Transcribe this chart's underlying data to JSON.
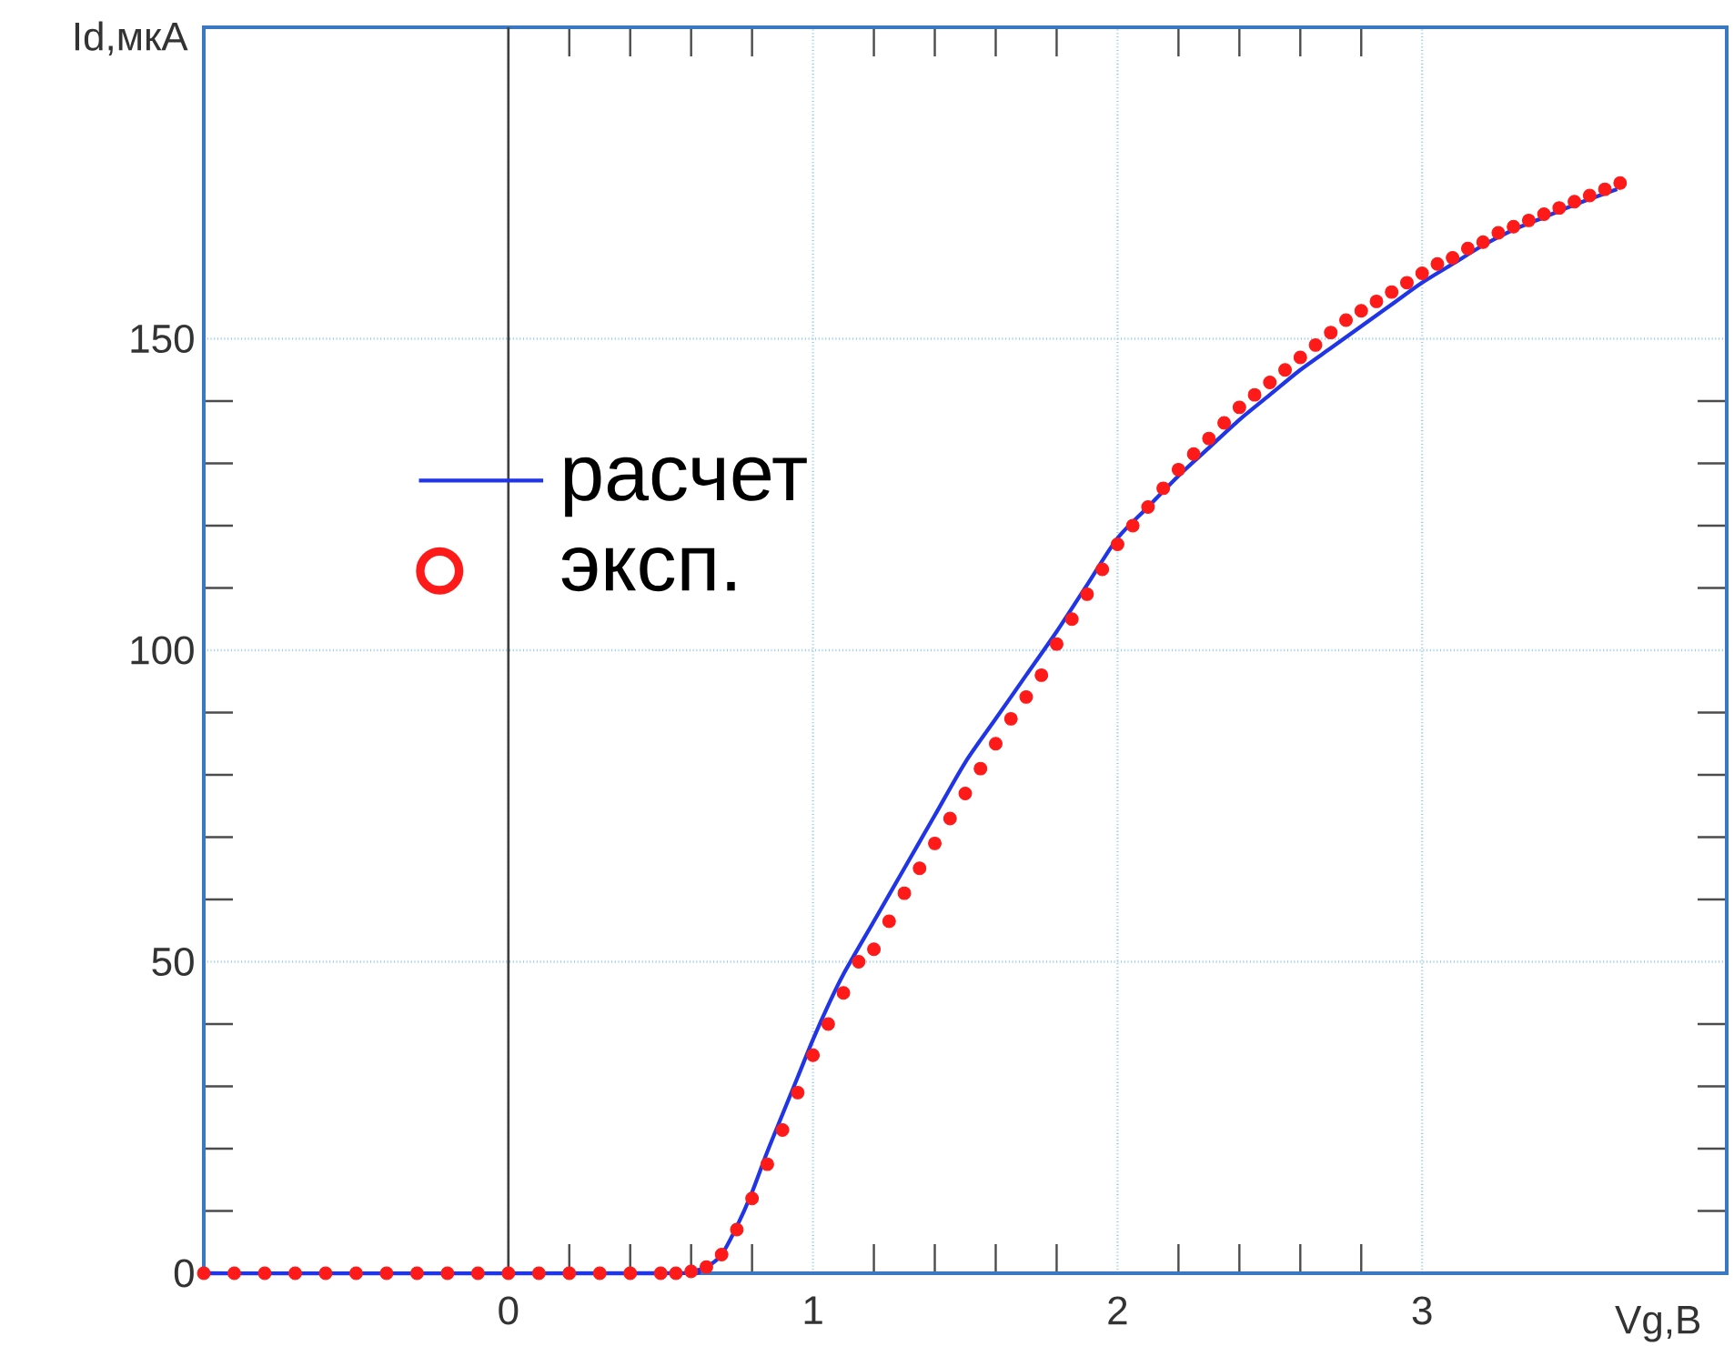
{
  "chart_data": {
    "type": "line",
    "xlabel": "Vg,В",
    "ylabel": "Id,мкА",
    "xlim": [
      -1,
      4
    ],
    "ylim": [
      0,
      200
    ],
    "xticks": [
      0,
      1,
      2,
      3
    ],
    "yticks": [
      0,
      50,
      100,
      150
    ],
    "grid": true,
    "legend": "left",
    "ref_lines": [
      {
        "axis": "x",
        "value": 0,
        "color": "#404040"
      }
    ],
    "series": [
      {
        "name": "расчет",
        "color": "#1f35e6",
        "line_style": "solid",
        "x": [
          -1,
          0.5,
          0.6,
          0.65,
          0.7,
          0.75,
          0.8,
          0.85,
          0.9,
          0.95,
          1.0,
          1.05,
          1.1,
          1.2,
          1.3,
          1.4,
          1.5,
          1.6,
          1.7,
          1.8,
          1.9,
          2.0,
          2.1,
          2.2,
          2.3,
          2.4,
          2.5,
          2.6,
          2.7,
          2.8,
          2.9,
          3.0,
          3.1,
          3.2,
          3.3,
          3.4,
          3.5,
          3.64
        ],
        "values": [
          0,
          0,
          0.3,
          1,
          3,
          7.5,
          13,
          19.5,
          25.5,
          31.5,
          37.5,
          43,
          48,
          56.5,
          65,
          73.5,
          82,
          89,
          96,
          103,
          110.5,
          118,
          123,
          128,
          132.5,
          137,
          141,
          145,
          148.5,
          152,
          155.5,
          159,
          162,
          165,
          167.5,
          169.5,
          171.5,
          174
        ]
      },
      {
        "name": "эксп.",
        "type": "scatter",
        "color": "#ff1a1a",
        "marker": "circle",
        "x": [
          -1,
          -0.9,
          -0.8,
          -0.7,
          -0.6,
          -0.5,
          -0.4,
          -0.3,
          -0.2,
          -0.1,
          0,
          0.1,
          0.2,
          0.3,
          0.4,
          0.5,
          0.55,
          0.6,
          0.65,
          0.7,
          0.75,
          0.8,
          0.85,
          0.9,
          0.95,
          1.0,
          1.05,
          1.1,
          1.15,
          1.2,
          1.25,
          1.3,
          1.35,
          1.4,
          1.45,
          1.5,
          1.55,
          1.6,
          1.65,
          1.7,
          1.75,
          1.8,
          1.85,
          1.9,
          1.95,
          2.0,
          2.05,
          2.1,
          2.15,
          2.2,
          2.25,
          2.3,
          2.35,
          2.4,
          2.45,
          2.5,
          2.55,
          2.6,
          2.65,
          2.7,
          2.75,
          2.8,
          2.85,
          2.9,
          2.95,
          3.0,
          3.05,
          3.1,
          3.15,
          3.2,
          3.25,
          3.3,
          3.35,
          3.4,
          3.45,
          3.5,
          3.55,
          3.6,
          3.65
        ],
        "values": [
          0,
          0,
          0,
          0,
          0,
          0,
          0,
          0,
          0,
          0,
          0,
          0,
          0,
          0,
          0,
          0,
          0,
          0.3,
          1,
          3,
          7,
          12,
          17.5,
          23,
          29,
          35,
          40,
          45,
          50,
          52,
          56.5,
          61,
          65,
          69,
          73,
          77,
          81,
          85,
          89,
          92.5,
          96,
          101,
          105,
          109,
          113,
          117,
          120,
          123,
          126,
          129,
          131.5,
          134,
          136.5,
          139,
          141,
          143,
          145,
          147,
          149,
          151,
          153,
          154.5,
          156,
          157.5,
          159,
          160.5,
          162,
          163,
          164.5,
          165.5,
          167,
          168,
          169,
          170,
          171,
          172,
          173,
          174,
          175
        ]
      }
    ]
  }
}
